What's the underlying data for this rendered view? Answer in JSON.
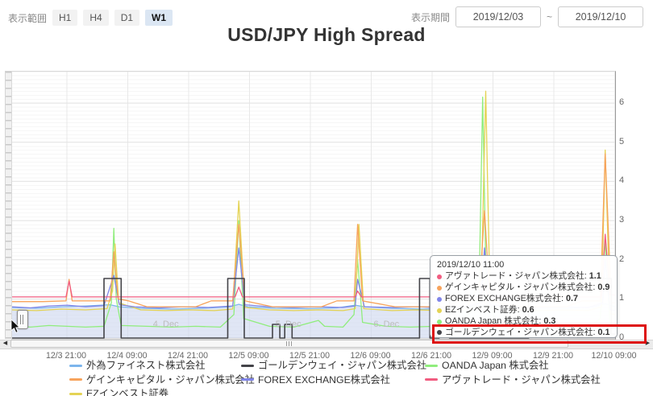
{
  "toolbar": {
    "range_label": "表示範囲",
    "buttons": [
      {
        "label": "H1",
        "active": false
      },
      {
        "label": "H4",
        "active": false
      },
      {
        "label": "D1",
        "active": false
      },
      {
        "label": "W1",
        "active": true
      }
    ],
    "period_label": "表示期間",
    "date_from": "2019/12/03",
    "tilde": "~",
    "date_to": "2019/12/10"
  },
  "title": "USD/JPY High Spread",
  "chart_data": {
    "type": "line",
    "title": "USD/JPY High Spread",
    "x_ticks": [
      "12/3 21:00",
      "12/4 09:00",
      "12/4 21:00",
      "12/5 09:00",
      "12/5 21:00",
      "12/6 09:00",
      "12/6 21:00",
      "12/9 09:00",
      "12/9 21:00",
      "12/10 09:00"
    ],
    "y_ticks": [
      "0",
      "1",
      "2",
      "3",
      "4",
      "5",
      "6"
    ],
    "ylim": [
      0,
      6.8
    ],
    "xlim": [
      0,
      9.84
    ],
    "grid": true,
    "legend_position": "bottom",
    "day_labels": [
      {
        "label": "4. Dec",
        "t": 2.3
      },
      {
        "label": "5. Dec",
        "t": 4.3
      },
      {
        "label": "6. Dec",
        "t": 5.9
      }
    ],
    "series": [
      {
        "key": "gaitame",
        "name": "外為ファイネスト株式会社",
        "color": "#7cb5ec",
        "type": "area",
        "fill": "#ccd6ee",
        "points": [
          [
            0,
            0.78
          ],
          [
            0.4,
            0.76
          ],
          [
            0.8,
            0.8
          ],
          [
            1.2,
            0.82
          ],
          [
            1.6,
            0.85
          ],
          [
            1.75,
            0.8
          ],
          [
            2.1,
            0.76
          ],
          [
            2.6,
            0.74
          ],
          [
            3.1,
            0.76
          ],
          [
            3.55,
            0.8
          ],
          [
            3.7,
            0.86
          ],
          [
            3.85,
            0.8
          ],
          [
            4.3,
            0.76
          ],
          [
            4.8,
            0.75
          ],
          [
            5.3,
            0.77
          ],
          [
            5.6,
            0.84
          ],
          [
            5.75,
            0.8
          ],
          [
            6.2,
            0.76
          ],
          [
            6.7,
            0.74
          ],
          [
            7.2,
            0.76
          ],
          [
            7.6,
            0.82
          ],
          [
            7.75,
            0.86
          ],
          [
            8.1,
            0.8
          ],
          [
            8.6,
            0.78
          ],
          [
            9.1,
            0.76
          ],
          [
            9.5,
            0.8
          ],
          [
            9.68,
            0.88
          ],
          [
            9.84,
            0.8
          ]
        ]
      },
      {
        "key": "oanda",
        "name": "OANDA Japan 株式会社",
        "color": "#90ed7d",
        "type": "line",
        "points": [
          [
            0,
            0.3
          ],
          [
            0.3,
            0.28
          ],
          [
            0.6,
            0.32
          ],
          [
            0.9,
            0.3
          ],
          [
            1.2,
            0.28
          ],
          [
            1.5,
            0.3
          ],
          [
            1.62,
            0.9
          ],
          [
            1.66,
            2.8
          ],
          [
            1.7,
            1.0
          ],
          [
            1.78,
            0.32
          ],
          [
            2.2,
            0.3
          ],
          [
            2.6,
            0.28
          ],
          [
            3.0,
            0.3
          ],
          [
            3.4,
            0.28
          ],
          [
            3.62,
            0.6
          ],
          [
            3.7,
            3.0
          ],
          [
            3.78,
            0.5
          ],
          [
            4.2,
            0.3
          ],
          [
            4.6,
            0.28
          ],
          [
            5.0,
            0.45
          ],
          [
            5.1,
            0.3
          ],
          [
            5.4,
            0.28
          ],
          [
            5.58,
            0.6
          ],
          [
            5.64,
            2.0
          ],
          [
            5.72,
            0.4
          ],
          [
            6.1,
            0.3
          ],
          [
            6.5,
            0.28
          ],
          [
            6.9,
            0.3
          ],
          [
            7.3,
            0.28
          ],
          [
            7.62,
            1.0
          ],
          [
            7.68,
            6.15
          ],
          [
            7.74,
            1.2
          ],
          [
            7.9,
            0.35
          ],
          [
            8.3,
            0.3
          ],
          [
            8.7,
            0.28
          ],
          [
            9.1,
            0.3
          ],
          [
            9.45,
            0.32
          ],
          [
            9.6,
            0.5
          ],
          [
            9.68,
            2.5
          ],
          [
            9.76,
            0.3
          ],
          [
            9.84,
            0.3
          ]
        ]
      },
      {
        "key": "ez",
        "name": "EZインベスト証券",
        "color": "#e4d354",
        "type": "line",
        "points": [
          [
            0,
            0.72
          ],
          [
            0.4,
            0.7
          ],
          [
            0.8,
            0.74
          ],
          [
            1.2,
            0.72
          ],
          [
            1.55,
            0.75
          ],
          [
            1.64,
            1.2
          ],
          [
            1.68,
            2.4
          ],
          [
            1.74,
            0.9
          ],
          [
            2.1,
            0.72
          ],
          [
            2.5,
            0.7
          ],
          [
            2.9,
            0.72
          ],
          [
            3.3,
            0.7
          ],
          [
            3.6,
            0.74
          ],
          [
            3.7,
            3.5
          ],
          [
            3.8,
            0.78
          ],
          [
            4.2,
            0.72
          ],
          [
            4.6,
            0.7
          ],
          [
            5.0,
            0.72
          ],
          [
            5.4,
            0.7
          ],
          [
            5.6,
            0.75
          ],
          [
            5.66,
            2.9
          ],
          [
            5.74,
            0.75
          ],
          [
            6.2,
            0.7
          ],
          [
            6.6,
            0.72
          ],
          [
            7.0,
            0.7
          ],
          [
            7.4,
            0.72
          ],
          [
            7.66,
            1.5
          ],
          [
            7.73,
            6.3
          ],
          [
            7.8,
            1.0
          ],
          [
            8.2,
            0.72
          ],
          [
            8.6,
            0.7
          ],
          [
            9.0,
            0.72
          ],
          [
            9.4,
            0.7
          ],
          [
            9.62,
            0.8
          ],
          [
            9.68,
            4.8
          ],
          [
            9.76,
            0.62
          ],
          [
            9.84,
            0.6
          ]
        ]
      },
      {
        "key": "forex",
        "name": "FOREX EXCHANGE株式会社",
        "color": "#8085e9",
        "type": "line",
        "points": [
          [
            0,
            0.8
          ],
          [
            0.3,
            0.77
          ],
          [
            0.6,
            0.82
          ],
          [
            0.9,
            0.84
          ],
          [
            1.2,
            0.8
          ],
          [
            1.5,
            0.83
          ],
          [
            1.66,
            1.6
          ],
          [
            1.75,
            0.85
          ],
          [
            2.0,
            0.8
          ],
          [
            2.4,
            0.77
          ],
          [
            2.8,
            0.8
          ],
          [
            3.2,
            0.78
          ],
          [
            3.6,
            0.82
          ],
          [
            3.7,
            2.3
          ],
          [
            3.8,
            0.85
          ],
          [
            4.2,
            0.8
          ],
          [
            4.6,
            0.78
          ],
          [
            5.0,
            0.8
          ],
          [
            5.4,
            0.78
          ],
          [
            5.6,
            0.82
          ],
          [
            5.64,
            1.5
          ],
          [
            5.75,
            0.8
          ],
          [
            6.2,
            0.78
          ],
          [
            6.6,
            0.8
          ],
          [
            7.0,
            0.77
          ],
          [
            7.4,
            0.8
          ],
          [
            7.65,
            0.9
          ],
          [
            7.71,
            2.3
          ],
          [
            7.8,
            0.85
          ],
          [
            8.2,
            0.8
          ],
          [
            8.6,
            0.78
          ],
          [
            9.0,
            0.8
          ],
          [
            9.4,
            0.78
          ],
          [
            9.64,
            0.9
          ],
          [
            9.68,
            2.0
          ],
          [
            9.76,
            0.72
          ],
          [
            9.84,
            0.7
          ]
        ]
      },
      {
        "key": "gain",
        "name": "ゲインキャピタル・ジャパン株式会社",
        "color": "#f7a35c",
        "type": "line",
        "points": [
          [
            0,
            0.93
          ],
          [
            0.5,
            0.93
          ],
          [
            0.88,
            0.95
          ],
          [
            0.93,
            1.5
          ],
          [
            0.98,
            0.95
          ],
          [
            1.3,
            0.95
          ],
          [
            1.6,
            0.95
          ],
          [
            1.66,
            2.2
          ],
          [
            1.73,
            1.0
          ],
          [
            1.9,
            0.95
          ],
          [
            2.2,
            0.8
          ],
          [
            3.0,
            0.8
          ],
          [
            3.25,
            0.95
          ],
          [
            3.6,
            0.95
          ],
          [
            3.7,
            2.9
          ],
          [
            3.8,
            0.95
          ],
          [
            4.25,
            0.8
          ],
          [
            5.05,
            0.8
          ],
          [
            5.3,
            0.95
          ],
          [
            5.58,
            0.95
          ],
          [
            5.64,
            2.9
          ],
          [
            5.72,
            0.95
          ],
          [
            6.25,
            0.8
          ],
          [
            7.05,
            0.8
          ],
          [
            7.3,
            0.95
          ],
          [
            7.62,
            1.0
          ],
          [
            7.71,
            3.25
          ],
          [
            7.8,
            0.95
          ],
          [
            8.3,
            0.8
          ],
          [
            9.05,
            0.8
          ],
          [
            9.3,
            0.95
          ],
          [
            9.6,
            0.95
          ],
          [
            9.68,
            4.7
          ],
          [
            9.78,
            0.9
          ],
          [
            9.84,
            0.9
          ]
        ]
      },
      {
        "key": "avatrade",
        "name": "アヴァトレード・ジャパン株式会社",
        "color": "#f15c80",
        "type": "line",
        "points": [
          [
            0,
            1.05
          ],
          [
            0.88,
            1.05
          ],
          [
            0.93,
            1.45
          ],
          [
            0.98,
            1.05
          ],
          [
            3.64,
            1.05
          ],
          [
            3.7,
            1.3
          ],
          [
            3.76,
            1.05
          ],
          [
            5.6,
            1.05
          ],
          [
            5.64,
            1.2
          ],
          [
            5.7,
            1.05
          ],
          [
            7.66,
            1.05
          ],
          [
            7.71,
            1.35
          ],
          [
            7.77,
            1.05
          ],
          [
            9.62,
            1.05
          ],
          [
            9.68,
            2.65
          ],
          [
            9.76,
            1.1
          ],
          [
            9.84,
            1.1
          ]
        ]
      },
      {
        "key": "goldenway",
        "name": "ゴールデンウェイ・ジャパン株式会社",
        "color": "#434348",
        "type": "line",
        "points": [
          [
            0,
            0
          ],
          [
            1.5,
            0
          ],
          [
            1.5,
            1.52
          ],
          [
            1.78,
            1.52
          ],
          [
            1.78,
            0
          ],
          [
            3.52,
            0
          ],
          [
            3.52,
            1.52
          ],
          [
            3.79,
            1.52
          ],
          [
            3.79,
            0
          ],
          [
            4.25,
            0
          ],
          [
            4.25,
            0.35
          ],
          [
            4.37,
            0.35
          ],
          [
            4.37,
            0
          ],
          [
            4.45,
            0
          ],
          [
            4.45,
            0.35
          ],
          [
            4.57,
            0.35
          ],
          [
            4.57,
            0
          ],
          [
            6.65,
            0
          ],
          [
            6.65,
            1.52
          ],
          [
            6.82,
            1.52
          ],
          [
            6.82,
            0
          ],
          [
            6.97,
            0
          ],
          [
            6.97,
            1.52
          ],
          [
            7.14,
            1.52
          ],
          [
            7.14,
            0
          ],
          [
            8.43,
            0
          ],
          [
            8.43,
            1.52
          ],
          [
            9.78,
            1.52
          ],
          [
            9.78,
            0.1
          ],
          [
            9.84,
            0.1
          ]
        ]
      }
    ]
  },
  "tooltip": {
    "header": "2019/12/10 11:00",
    "rows": [
      {
        "label": "アヴァトレード・ジャパン株式会社: ",
        "value": "1.1",
        "color": "#f15c80",
        "highlighted": false
      },
      {
        "label": "ゲインキャピタル・ジャパン株式会社: ",
        "value": "0.9",
        "color": "#f7a35c",
        "highlighted": false
      },
      {
        "label": "FOREX EXCHANGE株式会社: ",
        "value": "0.7",
        "color": "#8085e9",
        "highlighted": false
      },
      {
        "label": "EZインベスト証券: ",
        "value": "0.6",
        "color": "#e4d354",
        "highlighted": false
      },
      {
        "label": "OANDA Japan 株式会社: ",
        "value": "0.3",
        "color": "#90ed7d",
        "highlighted": false
      },
      {
        "label": "ゴールデンウェイ・ジャパン株式会社: ",
        "value": "0.1",
        "color": "#434348",
        "highlighted": true
      }
    ]
  },
  "annotation": {
    "highlight_color": "#dd0f0f"
  },
  "legend": {
    "items": [
      {
        "label": "外為ファイネスト株式会社",
        "color": "#7cb5ec"
      },
      {
        "label": "ゴールデンウェイ・ジャパン株式会社",
        "color": "#434348"
      },
      {
        "label": "OANDA Japan 株式会社",
        "color": "#90ed7d"
      },
      {
        "label": "ゲインキャピタル・ジャパン株式会社",
        "color": "#f7a35c"
      },
      {
        "label": "FOREX EXCHANGE株式会社",
        "color": "#8085e9"
      },
      {
        "label": "アヴァトレード・ジャパン株式会社",
        "color": "#f15c80"
      },
      {
        "label": "EZインベスト証券",
        "color": "#e4d354"
      }
    ]
  },
  "scrollbar": {
    "left_arrow": "◀",
    "right_arrow": "▶"
  }
}
